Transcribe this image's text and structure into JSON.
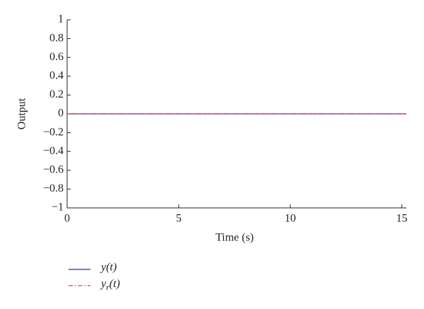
{
  "chart_data": {
    "type": "line",
    "xlabel": "Time (s)",
    "ylabel": "Output",
    "x": [
      0,
      15.2
    ],
    "series": [
      {
        "name": "y(t)",
        "color": "#2e3192",
        "dash": "solid",
        "values": [
          0,
          0
        ]
      },
      {
        "name": "yr(t)",
        "color": "#d2405e",
        "dash": "dashdot",
        "values": [
          0,
          0
        ]
      }
    ],
    "xlim": [
      0,
      15.2
    ],
    "xticks": [
      0,
      5,
      10,
      15
    ],
    "ylim": [
      -1,
      1
    ],
    "yticks": [
      {
        "value": -1,
        "label": "−1"
      },
      {
        "value": -0.8,
        "label": "−0.8"
      },
      {
        "value": -0.6,
        "label": "−0.6"
      },
      {
        "value": -0.4,
        "label": "−0.4"
      },
      {
        "value": -0.2,
        "label": "−0.2"
      },
      0,
      0.2,
      0.4,
      0.6,
      0.8,
      1
    ],
    "legend": "below"
  }
}
